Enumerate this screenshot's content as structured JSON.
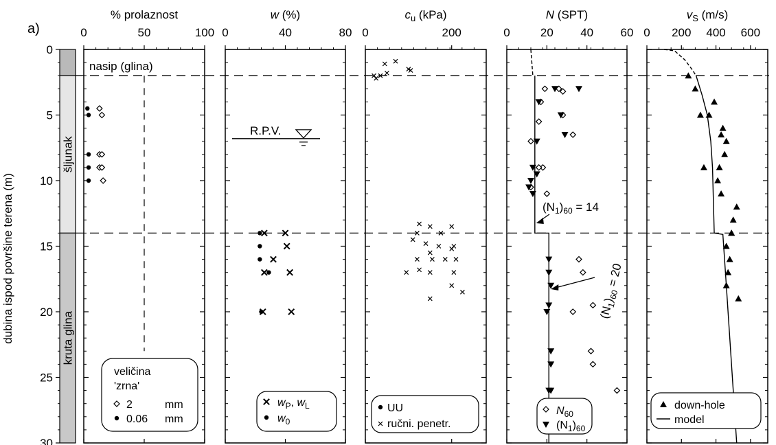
{
  "panel_label": "a)",
  "y_axis": {
    "label": "dubina ispod površine terena (m)",
    "ticks": [
      0,
      5,
      10,
      15,
      20,
      25,
      30
    ],
    "range": [
      0,
      30
    ]
  },
  "strata": [
    {
      "label": "nasip (glina)",
      "top": 0,
      "bottom": 2,
      "color": "#b9b9b9"
    },
    {
      "label": "šljunak",
      "top": 2,
      "bottom": 14,
      "color": "#e6e6e6"
    },
    {
      "label": "kruta glina",
      "top": 14,
      "bottom": 30,
      "color": "#c8c8c8"
    }
  ],
  "boundaries": [
    2,
    14
  ],
  "water_table": {
    "label": "R.P.V.",
    "depth": 6.8
  },
  "chart_data": [
    {
      "type": "scatter",
      "title": "% prolaznost",
      "xlim": [
        0,
        100
      ],
      "xticks": [
        0,
        50,
        100
      ],
      "guide_x": 50,
      "series": [
        {
          "name": "2 mm",
          "marker": "diamond-open",
          "x": [
            13,
            15,
            13,
            15,
            13,
            15,
            16
          ],
          "y": [
            4.5,
            5,
            8,
            8,
            9,
            9,
            10
          ]
        },
        {
          "name": "0.06 mm",
          "marker": "dot",
          "x": [
            3,
            4,
            4,
            4,
            4
          ],
          "y": [
            4.5,
            5,
            8,
            9,
            10
          ]
        }
      ],
      "legend": {
        "title_line1": "veličina",
        "title_line2": "'zrna'",
        "entries": [
          "2",
          "0.06"
        ],
        "unit": "mm"
      }
    },
    {
      "type": "scatter",
      "title_italic": "w",
      "title_rest": " (%)",
      "xlim": [
        0,
        80
      ],
      "xticks": [
        0,
        40,
        80
      ],
      "series": [
        {
          "name": "wP, wL",
          "marker": "x",
          "x": [
            26,
            40,
            41,
            32,
            26,
            43,
            25,
            44
          ],
          "y": [
            14,
            14,
            15,
            16,
            17,
            17,
            20,
            20
          ]
        },
        {
          "name": "w0",
          "marker": "dot",
          "x": [
            23,
            23,
            23,
            29,
            24
          ],
          "y": [
            14,
            15,
            16,
            17,
            20
          ]
        }
      ],
      "legend": {
        "entry1_main": "w",
        "entry1_sub": "P",
        "entry1_sep": ", ",
        "entry1_main2": "w",
        "entry1_sub2": "L",
        "entry2_main": "w",
        "entry2_sub": "0"
      }
    },
    {
      "type": "scatter",
      "title_italic": "c",
      "title_sub": "u",
      "title_rest": "  (kPa)",
      "xlim": [
        0,
        280
      ],
      "xticks": [
        0,
        200
      ],
      "series": [
        {
          "name": "UU",
          "marker": "dot",
          "x": [],
          "y": []
        },
        {
          "name": "ručni. penetr.",
          "marker": "x-small",
          "x": [
            25,
            45,
            70,
            100,
            20,
            35,
            50,
            105,
            125,
            150,
            175,
            200,
            110,
            140,
            170,
            205,
            120,
            155,
            185,
            210,
            125,
            150,
            205,
            120,
            150,
            200,
            95,
            200,
            225,
            150
          ],
          "y": [
            2.2,
            1.1,
            0.9,
            1.5,
            2.0,
            2.0,
            1.8,
            1.6,
            13.3,
            13.5,
            14.0,
            13.5,
            14.5,
            14.8,
            15.0,
            15.0,
            16.0,
            16.0,
            16.0,
            16.0,
            16.8,
            17.0,
            17.0,
            14.0,
            15.5,
            18.0,
            17.0,
            15.2,
            18.5,
            19.0
          ]
        }
      ],
      "legend": {
        "entries": [
          "UU",
          "ručni. penetr."
        ]
      }
    },
    {
      "type": "scatter",
      "title_italic": "N",
      "title_rest": " (SPT)",
      "xlim": [
        0,
        60
      ],
      "xticks": [
        0,
        20,
        40,
        60
      ],
      "series": [
        {
          "name": "N60",
          "marker": "diamond-open",
          "x": [
            19,
            26,
            28,
            17,
            28,
            16,
            33,
            12,
            18,
            16,
            20,
            12,
            36,
            38,
            33,
            43,
            42,
            43,
            55
          ],
          "y": [
            3,
            3,
            5,
            4,
            3.2,
            5.5,
            6.5,
            7,
            9,
            9,
            11,
            10.5,
            16,
            17,
            20,
            19.5,
            23,
            24,
            26
          ]
        },
        {
          "name": "(N1)60",
          "marker": "triangle-down",
          "x": [
            24,
            36,
            27,
            16,
            29,
            15,
            13,
            12,
            15,
            11,
            13,
            21,
            21,
            22,
            21,
            20,
            22,
            22,
            21,
            22
          ],
          "y": [
            3,
            3,
            5,
            4,
            6.5,
            7,
            9,
            10,
            9.5,
            10.5,
            11,
            16,
            17,
            18,
            19.5,
            20,
            23,
            24,
            26,
            26
          ]
        }
      ],
      "model": {
        "dashed": [
          [
            12,
            0
          ],
          [
            13,
            2
          ]
        ],
        "solid": [
          [
            14,
            2
          ],
          [
            14,
            14
          ],
          [
            21,
            14
          ],
          [
            21,
            30
          ]
        ]
      },
      "annotations": [
        {
          "text_main": "(N",
          "text_sub": "1",
          "text_rest": ")",
          "text_sub2": "60",
          "text_end": " = 14",
          "value": 14
        },
        {
          "text_main": "(N",
          "text_sub": "1",
          "text_rest": ")",
          "text_sub2": "60",
          "text_end": " = 20",
          "value": 20
        }
      ],
      "legend": {
        "entry1_main": "N",
        "entry1_sub": "60",
        "entry2_main": "(N",
        "entry2_sub": "1",
        "entry2_rest": ")",
        "entry2_sub2": "60"
      }
    },
    {
      "type": "line",
      "title_italic": "v",
      "title_sub": "S",
      "title_rest": "  (m/s)",
      "xlim": [
        0,
        700
      ],
      "xticks": [
        0,
        200,
        400,
        600
      ],
      "series": [
        {
          "name": "down-hole",
          "marker": "triangle-up",
          "x": [
            240,
            280,
            310,
            390,
            330,
            360,
            440,
            430,
            460,
            450,
            420,
            410,
            430,
            490,
            520,
            500,
            490,
            460,
            480,
            470,
            460,
            530
          ],
          "y": [
            2,
            3,
            5,
            4,
            9,
            5,
            6,
            6.5,
            7,
            8,
            9,
            10,
            11,
            14,
            12,
            13,
            14,
            15,
            16,
            17,
            18,
            19
          ]
        },
        {
          "name": "model",
          "dashed": [
            [
              100,
              0
            ],
            [
              160,
              0.1
            ],
            [
              220,
              0.8
            ],
            [
              260,
              1.5
            ],
            [
              285,
              2
            ]
          ],
          "solid": [
            [
              285,
              2
            ],
            [
              320,
              3.5
            ],
            [
              350,
              5
            ],
            [
              370,
              7
            ],
            [
              380,
              9
            ],
            [
              390,
              14
            ],
            [
              440,
              14.1
            ],
            [
              460,
              18
            ],
            [
              480,
              22
            ],
            [
              500,
              26
            ],
            [
              520,
              30
            ]
          ]
        }
      ],
      "legend": {
        "entries": [
          "down-hole",
          "model"
        ]
      }
    }
  ]
}
